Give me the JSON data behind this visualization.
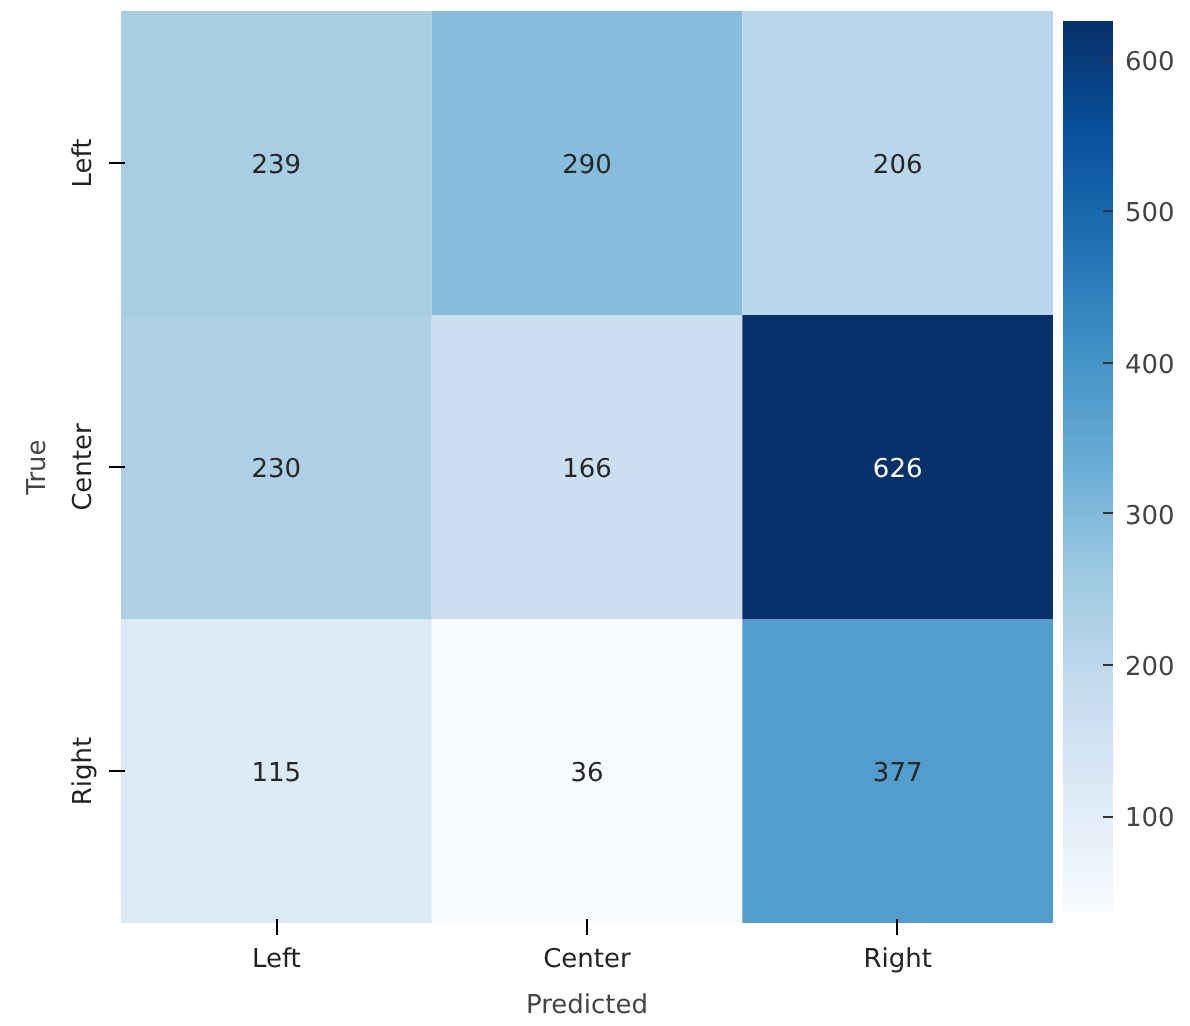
{
  "chart_data": {
    "type": "heatmap",
    "xlabel": "Predicted",
    "ylabel": "True",
    "categories": [
      "Left",
      "Center",
      "Right"
    ],
    "y_categories": [
      "Left",
      "Center",
      "Right"
    ],
    "cells": [
      [
        239,
        290,
        206
      ],
      [
        230,
        166,
        626
      ],
      [
        115,
        36,
        377
      ]
    ],
    "clim": [
      36,
      626
    ],
    "cticks": [
      100,
      200,
      300,
      400,
      500,
      600
    ],
    "data_labels": true,
    "grid": false
  }
}
